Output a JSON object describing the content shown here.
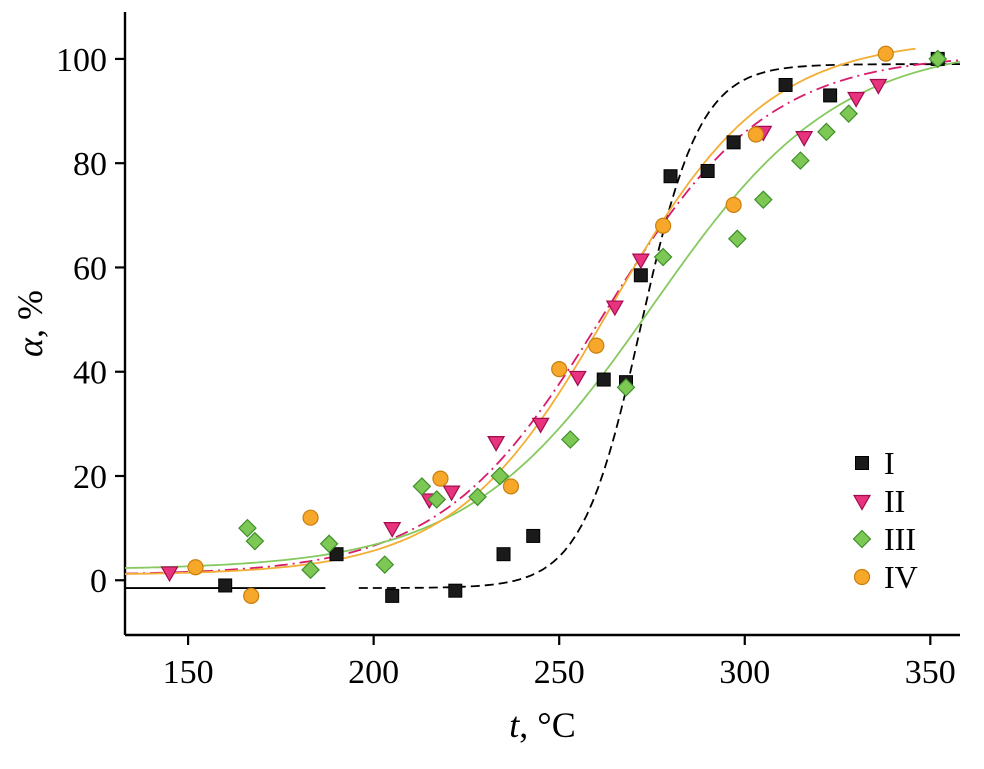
{
  "chart_data": {
    "type": "scatter",
    "title": "",
    "xlabel": {
      "var": "t",
      "rest": ", °C"
    },
    "ylabel": {
      "var": "α",
      "rest": ", %"
    },
    "xlim": [
      133,
      358
    ],
    "ylim": [
      -10.5,
      109
    ],
    "xticks": [
      150,
      200,
      250,
      300,
      350
    ],
    "yticks": [
      0,
      20,
      40,
      60,
      80,
      100
    ],
    "grid": false,
    "legend_position": "inside-right-lower",
    "axis_color": "#000000",
    "series": [
      {
        "name": "I",
        "marker": "square",
        "color": "#1a1a1a",
        "edge": "#000000",
        "line_color": "#000000",
        "points": [
          [
            160,
            -1
          ],
          [
            190,
            5
          ],
          [
            205,
            -3
          ],
          [
            222,
            -2
          ],
          [
            235,
            5
          ],
          [
            243,
            8.5
          ],
          [
            262,
            38.5
          ],
          [
            268,
            38
          ],
          [
            272,
            58.5
          ],
          [
            280,
            77.5
          ],
          [
            290,
            78.5
          ],
          [
            297,
            84
          ],
          [
            311,
            95
          ],
          [
            323,
            93
          ],
          [
            352,
            100
          ]
        ],
        "fit": {
          "style": "dash",
          "A1": -1.5,
          "A2": 99,
          "x0": 272,
          "dx": 8,
          "range": [
            196,
            358
          ],
          "pre_line": {
            "x1": 133,
            "x2": 187,
            "y": -1.5
          }
        }
      },
      {
        "name": "II",
        "marker": "triangle-down",
        "color": "#e8337f",
        "edge": "#a10c4e",
        "line_color": "#d81b6b",
        "points": [
          [
            145,
            1.5
          ],
          [
            205,
            10
          ],
          [
            215,
            15.5
          ],
          [
            221,
            17
          ],
          [
            233,
            26.5
          ],
          [
            245,
            30
          ],
          [
            255,
            39
          ],
          [
            265,
            52.5
          ],
          [
            272,
            61.5
          ],
          [
            305,
            86
          ],
          [
            316,
            85
          ],
          [
            330,
            92.5
          ],
          [
            336,
            95
          ]
        ],
        "fit": {
          "style": "dash-dot",
          "A1": 1,
          "A2": 101,
          "x0": 262,
          "dx": 22,
          "range": [
            133,
            358
          ]
        }
      },
      {
        "name": "III",
        "marker": "diamond",
        "color": "#7dc855",
        "edge": "#3f8f2a",
        "line_color": "#86c95f",
        "points": [
          [
            166,
            10
          ],
          [
            168,
            7.5
          ],
          [
            183,
            2
          ],
          [
            188,
            7
          ],
          [
            203,
            3
          ],
          [
            213,
            18
          ],
          [
            217,
            15.5
          ],
          [
            228,
            16
          ],
          [
            234,
            20
          ],
          [
            253,
            27
          ],
          [
            268,
            37
          ],
          [
            278,
            62
          ],
          [
            298,
            65.5
          ],
          [
            305,
            73
          ],
          [
            315,
            80.5
          ],
          [
            322,
            86
          ],
          [
            328,
            89.5
          ],
          [
            352,
            100
          ]
        ],
        "fit": {
          "style": "solid",
          "A1": 2,
          "A2": 103,
          "x0": 275,
          "dx": 25,
          "range": [
            133,
            358
          ]
        }
      },
      {
        "name": "IV",
        "marker": "circle",
        "color": "#f7a82a",
        "edge": "#c97f0e",
        "line_color": "#f3ae35",
        "points": [
          [
            152,
            2.5
          ],
          [
            167,
            -3
          ],
          [
            183,
            12
          ],
          [
            218,
            19.5
          ],
          [
            237,
            18
          ],
          [
            250,
            40.5
          ],
          [
            260,
            45
          ],
          [
            278,
            68
          ],
          [
            297,
            72
          ],
          [
            303,
            85.5
          ],
          [
            338,
            101
          ]
        ],
        "fit": {
          "style": "solid",
          "A1": 1,
          "A2": 104,
          "x0": 264,
          "dx": 21,
          "range": [
            133,
            346
          ]
        }
      }
    ],
    "legend": {
      "items": [
        "I",
        "II",
        "III",
        "IV"
      ]
    }
  }
}
